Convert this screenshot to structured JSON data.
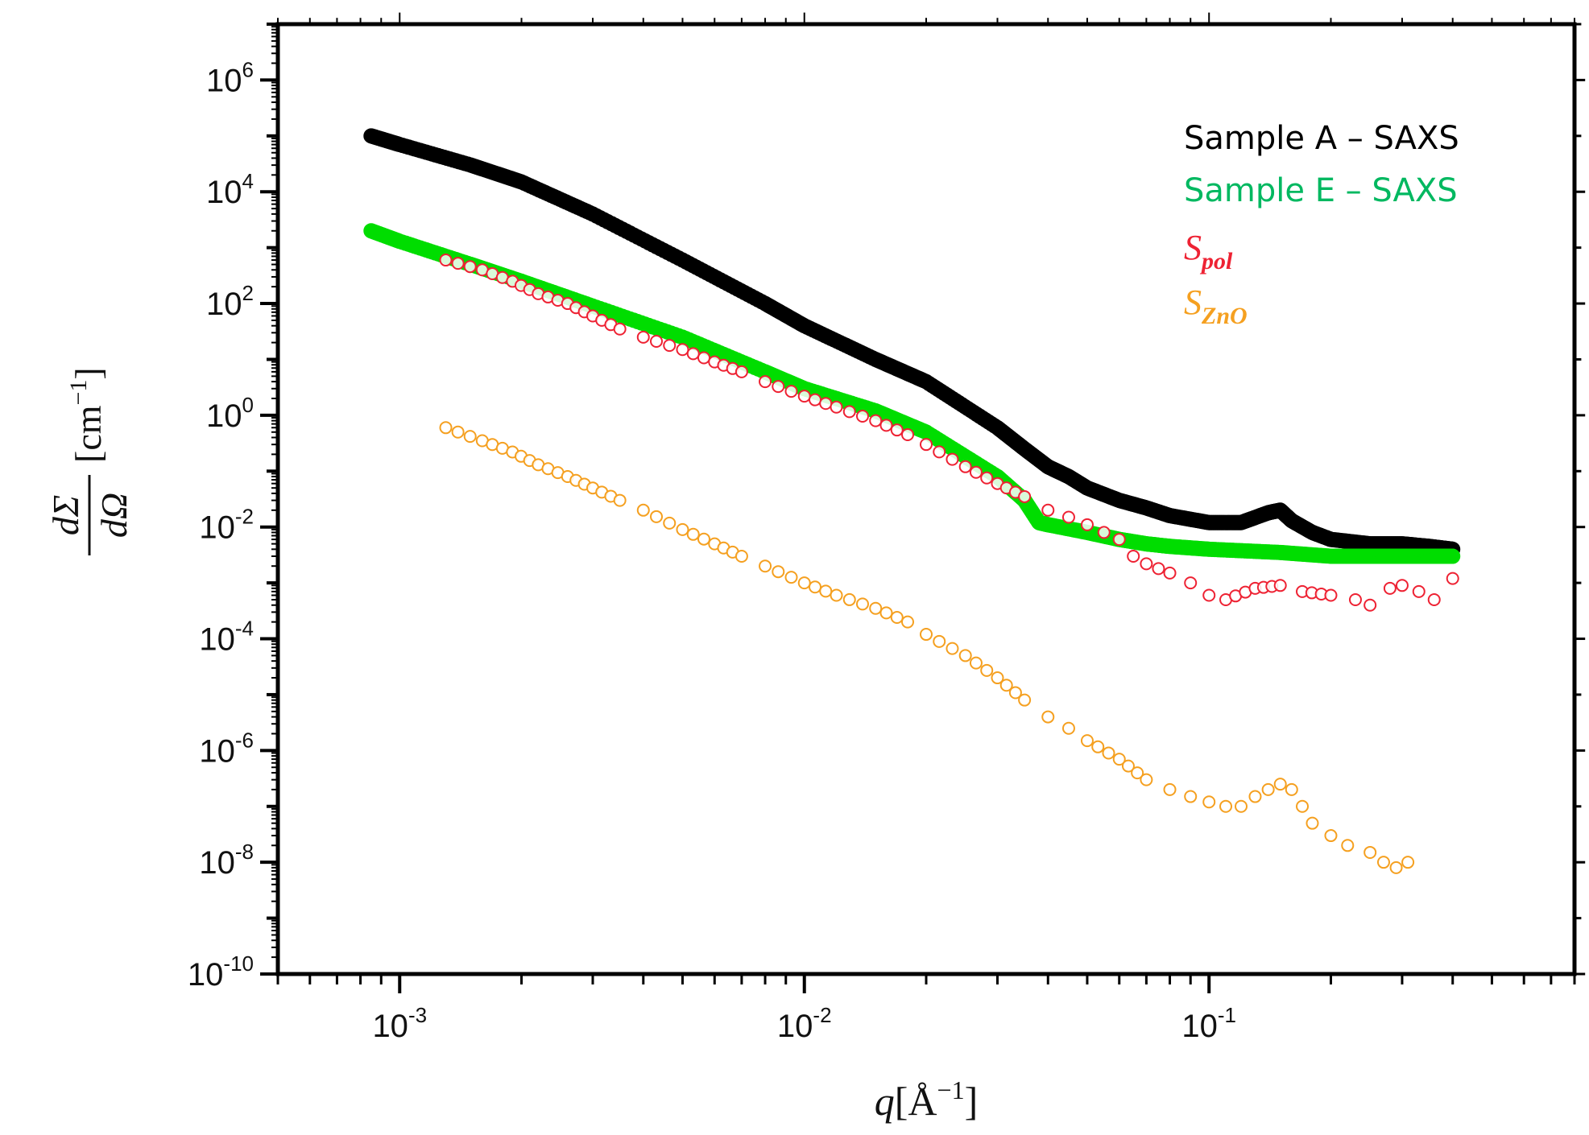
{
  "chart_data": {
    "type": "scatter",
    "title": "",
    "xscale": "log",
    "yscale": "log",
    "xlim": [
      0.0005,
      0.8
    ],
    "ylim": [
      1e-10,
      10000000.0
    ],
    "x_ticks": [
      {
        "value": 0.001,
        "base": "10",
        "exp": "-3"
      },
      {
        "value": 0.01,
        "base": "10",
        "exp": "-2"
      },
      {
        "value": 0.1,
        "base": "10",
        "exp": "-1"
      }
    ],
    "y_ticks": [
      {
        "value": 1000000.0,
        "base": "10",
        "exp": "6"
      },
      {
        "value": 10000.0,
        "base": "10",
        "exp": "4"
      },
      {
        "value": 100.0,
        "base": "10",
        "exp": "2"
      },
      {
        "value": 1.0,
        "base": "10",
        "exp": "0"
      },
      {
        "value": 0.01,
        "base": "10",
        "exp": "-2"
      },
      {
        "value": 0.0001,
        "base": "10",
        "exp": "-4"
      },
      {
        "value": 1e-06,
        "base": "10",
        "exp": "-6"
      },
      {
        "value": 1e-08,
        "base": "10",
        "exp": "-8"
      },
      {
        "value": 1e-10,
        "base": "10",
        "exp": "-10"
      }
    ],
    "xlabel": {
      "var": "q",
      "unit": "[Å",
      "exp": "−1",
      "close": "]"
    },
    "ylabel": {
      "num": "dΣ",
      "den": "dΩ",
      "unit": "[cm",
      "exp": "−1",
      "close": "]"
    },
    "legend_position": "top-right",
    "series": [
      {
        "name": "Sample A – SAXS",
        "color": "#000000",
        "marker": "filled-circle",
        "x": [
          0.00085,
          0.001,
          0.0015,
          0.002,
          0.003,
          0.005,
          0.008,
          0.01,
          0.015,
          0.02,
          0.03,
          0.035,
          0.04,
          0.045,
          0.05,
          0.06,
          0.07,
          0.08,
          0.1,
          0.12,
          0.14,
          0.15,
          0.16,
          0.18,
          0.2,
          0.25,
          0.3,
          0.35,
          0.4
        ],
        "y": [
          100000,
          70000,
          30000,
          15000,
          4000,
          600,
          100,
          40,
          10,
          4,
          0.6,
          0.25,
          0.12,
          0.08,
          0.05,
          0.03,
          0.022,
          0.016,
          0.012,
          0.012,
          0.018,
          0.02,
          0.013,
          0.008,
          0.006,
          0.005,
          0.005,
          0.0045,
          0.004
        ]
      },
      {
        "name": "Sample E – SAXS",
        "color": "#00dd00",
        "marker": "filled-circle",
        "x": [
          0.00085,
          0.001,
          0.0015,
          0.002,
          0.003,
          0.005,
          0.008,
          0.01,
          0.015,
          0.02,
          0.03,
          0.035,
          0.038,
          0.04,
          0.05,
          0.06,
          0.07,
          0.08,
          0.1,
          0.15,
          0.2,
          0.25,
          0.3,
          0.35,
          0.4
        ],
        "y": [
          2000,
          1300,
          500,
          250,
          90,
          25,
          6,
          3,
          1.2,
          0.5,
          0.08,
          0.03,
          0.012,
          0.011,
          0.008,
          0.006,
          0.005,
          0.0045,
          0.004,
          0.0035,
          0.003,
          0.003,
          0.003,
          0.003,
          0.003
        ]
      },
      {
        "name_base": "S",
        "name_sub": "pol",
        "color": "#ee2233",
        "marker": "open-circle",
        "x": [
          0.0013,
          0.0016,
          0.0019,
          0.0022,
          0.0026,
          0.003,
          0.0035,
          0.004,
          0.005,
          0.006,
          0.007,
          0.008,
          0.01,
          0.012,
          0.015,
          0.018,
          0.02,
          0.025,
          0.03,
          0.035,
          0.04,
          0.045,
          0.05,
          0.055,
          0.06,
          0.065,
          0.07,
          0.075,
          0.08,
          0.09,
          0.1,
          0.11,
          0.13,
          0.15,
          0.17,
          0.2,
          0.23,
          0.25,
          0.28,
          0.3,
          0.33,
          0.36,
          0.4
        ],
        "y": [
          600,
          400,
          250,
          150,
          100,
          60,
          35,
          25,
          15,
          9,
          6,
          4,
          2.2,
          1.4,
          0.8,
          0.45,
          0.3,
          0.12,
          0.06,
          0.035,
          0.02,
          0.015,
          0.011,
          0.008,
          0.006,
          0.003,
          0.0022,
          0.0018,
          0.0015,
          0.001,
          0.0006,
          0.0005,
          0.0008,
          0.0009,
          0.0007,
          0.0006,
          0.0005,
          0.0004,
          0.0008,
          0.0009,
          0.0007,
          0.0005,
          0.0012
        ]
      },
      {
        "name_base": "S",
        "name_sub": "ZnO",
        "color": "#f5a020",
        "marker": "open-circle",
        "x": [
          0.0013,
          0.0016,
          0.0019,
          0.0022,
          0.0026,
          0.003,
          0.0035,
          0.004,
          0.005,
          0.006,
          0.007,
          0.008,
          0.01,
          0.012,
          0.015,
          0.018,
          0.02,
          0.025,
          0.03,
          0.035,
          0.04,
          0.045,
          0.05,
          0.06,
          0.07,
          0.08,
          0.09,
          0.1,
          0.11,
          0.12,
          0.13,
          0.14,
          0.15,
          0.16,
          0.17,
          0.18,
          0.2,
          0.22,
          0.25,
          0.27,
          0.29,
          0.31
        ],
        "y": [
          0.6,
          0.35,
          0.22,
          0.13,
          0.08,
          0.05,
          0.03,
          0.02,
          0.009,
          0.005,
          0.003,
          0.002,
          0.001,
          0.0006,
          0.00035,
          0.0002,
          0.00012,
          5e-05,
          2e-05,
          8e-06,
          4e-06,
          2.5e-06,
          1.5e-06,
          7e-07,
          3e-07,
          2e-07,
          1.5e-07,
          1.2e-07,
          1e-07,
          1e-07,
          1.5e-07,
          2e-07,
          2.5e-07,
          2e-07,
          1e-07,
          5e-08,
          3e-08,
          2e-08,
          1.5e-08,
          1e-08,
          8e-09,
          1e-08
        ]
      }
    ]
  }
}
